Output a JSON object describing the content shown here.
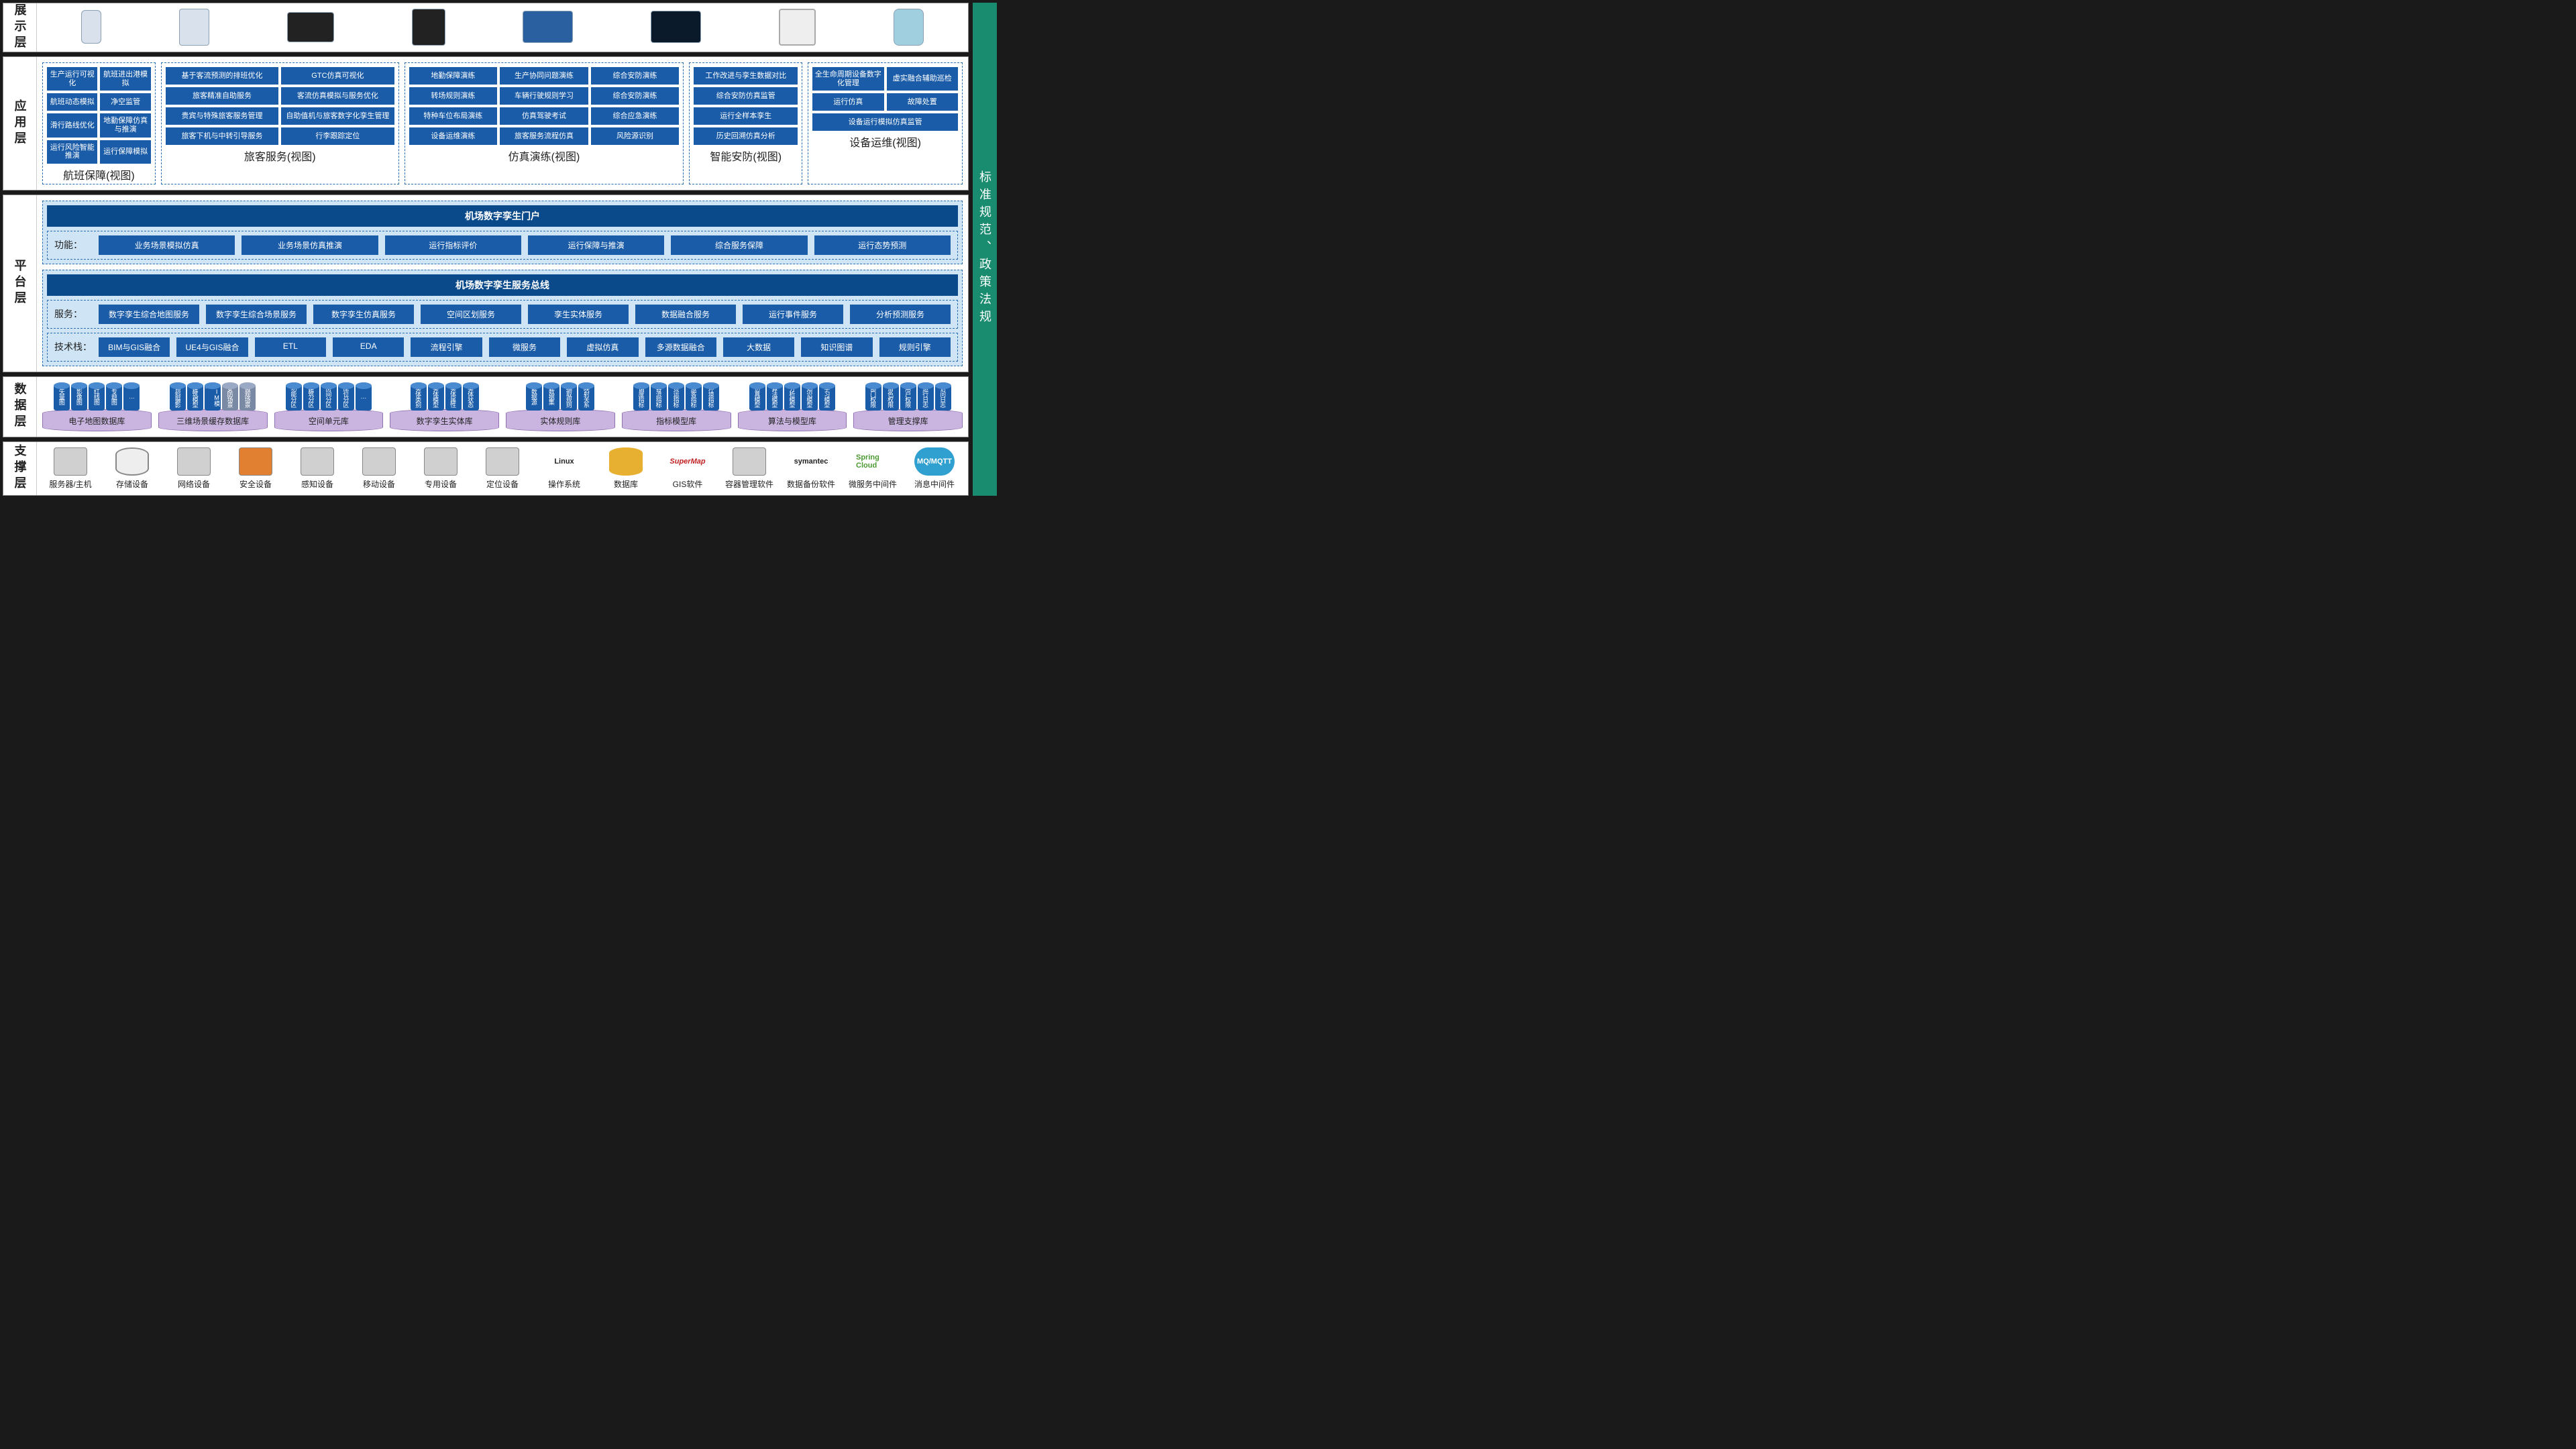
{
  "sidebar": "标准规范、政策法规",
  "layers": {
    "display": {
      "label": "展示层"
    },
    "app": {
      "label": "应用层",
      "groups": [
        {
          "title": "航班保障(视图)",
          "cols": 2,
          "items": [
            "生产运行可视化",
            "航班进出港模拟",
            "航班动态模拟",
            "净空监管",
            "滑行路线优化",
            "地勤保障仿真与推演",
            "运行风险智能推演",
            "运行保障模拟"
          ]
        },
        {
          "title": "旅客服务(视图)",
          "cols": 2,
          "items": [
            "基于客流预测的排班优化",
            "GTC仿真可视化",
            "旅客精准自助服务",
            "客流仿真模拟与服务优化",
            "贵宾与特殊旅客服务管理",
            "自助值机与旅客数字化孪生管理",
            "旅客下机与中转引导服务",
            "行李跟踪定位"
          ]
        },
        {
          "title": "仿真演练(视图)",
          "cols": 3,
          "items": [
            "地勤保障演练",
            "生产协同问题演练",
            "综合安防演练",
            "转场规则演练",
            "车辆行驶规则学习",
            "综合安防演练",
            "特种车位布局演练",
            "仿真驾驶考试",
            "综合应急演练",
            "设备运维演练",
            "旅客服务流程仿真",
            "风险源识别"
          ]
        },
        {
          "title": "智能安防(视图)",
          "cols": 1,
          "items": [
            "工作改进与孪生数据对比",
            "综合安防仿真监管",
            "运行全样本孪生",
            "历史回溯仿真分析"
          ]
        },
        {
          "title": "设备运维(视图)",
          "cols": 2,
          "items": [
            "全生命周期设备数字化管理",
            "虚实融合辅助巡检",
            "运行仿真",
            "故障处置",
            "设备运行模拟仿真监管",
            ""
          ]
        }
      ]
    },
    "platform": {
      "label": "平台层",
      "portal": "机场数字孪生门户",
      "func_label": "功能：",
      "func_items": [
        "业务场景模拟仿真",
        "业务场景仿真推演",
        "运行指标评价",
        "运行保障与推演",
        "综合服务保障",
        "运行态势预测"
      ],
      "bus": "机场数字孪生服务总线",
      "svc_label": "服务：",
      "svc_items": [
        "数字孪生综合地图服务",
        "数字孪生综合场景服务",
        "数字孪生仿真服务",
        "空间区划服务",
        "孪生实体服务",
        "数据融合服务",
        "运行事件服务",
        "分析预测服务"
      ],
      "tech_label": "技术栈：",
      "tech_items": [
        "BIM与GIS融合",
        "UE4与GIS融合",
        "ETL",
        "EDA",
        "流程引擎",
        "微服务",
        "虚拟仿真",
        "多源数据融合",
        "大数据",
        "知识图谱",
        "规则引擎"
      ]
    },
    "data": {
      "label": "数据层",
      "dbs": [
        {
          "name": "电子地图数据库",
          "cyls": [
            "矢量图",
            "影像图",
            "红线图",
            "专题图",
            "…"
          ]
        },
        {
          "name": "三维场景缓存数据库",
          "cyls": [
            "倾斜摄影",
            "建筑模型",
            "BIM模型",
            "安防场景",
            "微观场景"
          ],
          "alt": [
            3,
            4
          ]
        },
        {
          "name": "空间单元库",
          "cyls": [
            "功能分区",
            "建筑分区",
            "房间分区",
            "席位分区",
            "…"
          ]
        },
        {
          "name": "数字孪生实体库",
          "cyls": [
            "实体类别",
            "实体模型",
            "实体属性",
            "实体状态"
          ]
        },
        {
          "name": "实体规则库",
          "cyls": [
            "数据源",
            "数据集",
            "抽取规则",
            "映射关系"
          ]
        },
        {
          "name": "指标模型库",
          "cyls": [
            "调度指标",
            "客流指标",
            "货运指标",
            "旅客指标",
            "环境指标"
          ]
        },
        {
          "name": "算法与模型库",
          "cyls": [
            "仿真模型",
            "算法模型",
            "分析模型",
            "知识模型",
            "学习模型"
          ]
        },
        {
          "name": "管理支撑库",
          "cyls": [
            "部门权限",
            "角色权限",
            "用户权限",
            "运行日志",
            "访问日志"
          ]
        }
      ]
    },
    "support": {
      "label": "支撑层",
      "items": [
        {
          "label": "服务器/主机",
          "icon": "box"
        },
        {
          "label": "存储设备",
          "icon": "cyl3"
        },
        {
          "label": "网络设备",
          "icon": "box"
        },
        {
          "label": "安全设备",
          "icon": "orn"
        },
        {
          "label": "感知设备",
          "icon": "box"
        },
        {
          "label": "移动设备",
          "icon": "box"
        },
        {
          "label": "专用设备",
          "icon": "box"
        },
        {
          "label": "定位设备",
          "icon": "box"
        },
        {
          "label": "操作系统",
          "icon": "txt",
          "text": "Linux",
          "cls": "blk"
        },
        {
          "label": "数据库",
          "icon": "cyl2"
        },
        {
          "label": "GIS软件",
          "icon": "txt",
          "text": "SuperMap",
          "cls": "red"
        },
        {
          "label": "容器管理软件",
          "icon": "box"
        },
        {
          "label": "数据备份软件",
          "icon": "txt",
          "text": "symantec",
          "cls": "blk"
        },
        {
          "label": "微服务中间件",
          "icon": "txt",
          "text": "Spring Cloud",
          "cls": "green"
        },
        {
          "label": "消息中间件",
          "icon": "mq",
          "text": "MQ/MQTT"
        }
      ]
    }
  }
}
